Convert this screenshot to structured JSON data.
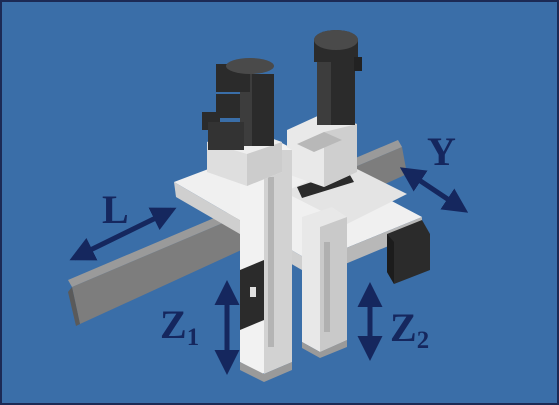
{
  "axes": {
    "y": {
      "main": "Y",
      "sub": ""
    },
    "l": {
      "main": "L",
      "sub": ""
    },
    "z1": {
      "main": "Z",
      "sub": "1"
    },
    "z2": {
      "main": "Z",
      "sub": "2"
    }
  },
  "colors": {
    "background": "#3a6ea8",
    "beam": "#7d7d7d",
    "beam_dark": "#5a5a5a",
    "carriage": "#f0f0f0",
    "carriage_shade": "#cfcfcf",
    "motor": "#2b2b2b",
    "motor_light": "#3d3d3d",
    "arrow": "#15275e"
  },
  "icons": {
    "machine": "gantry-robot-icon",
    "arrows": "double-arrow-icon"
  }
}
